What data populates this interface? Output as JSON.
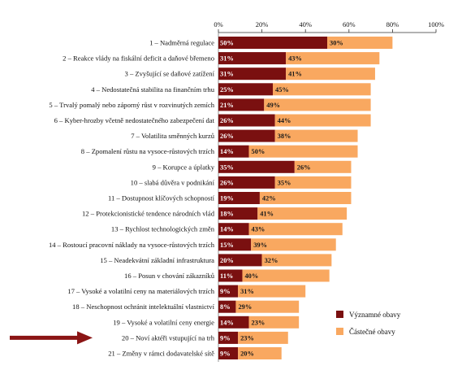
{
  "chart_data": {
    "type": "bar",
    "orientation": "horizontal",
    "stacked": true,
    "categories": [
      "1 – Nadměrná regulace",
      "2 – Reakce vlády na fiskální deficit a daňové břemeno",
      "3 – Zvyšující se daňové zatížení",
      "4 – Nedostatečná stabilita na finančním trhu",
      "5 – Trvalý pomalý nebo záporný růst v rozvinutých zemích",
      "6 – Kyber-hrozby včetně nedostatečného zabezpečení dat",
      "7 – Volatilita směnných kurzů",
      "8 – Zpomalení růstu na vysoce-růstových trzích",
      "9 – Korupce a úplatky",
      "10 – slabá důvěra v podnikání",
      "11 – Dostupnost klíčových schopností",
      "12 – Protekcionistické tendence národních vlád",
      "13 – Rychlost technologických změn",
      "14 – Rostoucí pracovní náklady na vysoce-růstových trzích",
      "15 – Neadekvátní základní infrastruktura",
      "16 – Posun v chování zákazníků",
      "17 – Vysoké a volatilní ceny na materiálových trzích",
      "18 – Neschopnost ochránit intelektuální vlastnictví",
      "19 – Vysoké a volatilní ceny energie",
      "20 – Noví aktéři vstupující na trh",
      "21 – Změny v rámci dodavatelské sítě"
    ],
    "series": [
      {
        "name": "Významné obavy",
        "color": "#7a1010",
        "values": [
          50,
          31,
          31,
          25,
          21,
          26,
          26,
          14,
          35,
          26,
          19,
          18,
          14,
          15,
          20,
          11,
          9,
          8,
          14,
          9,
          9
        ]
      },
      {
        "name": "Částečné obavy",
        "color": "#f9a860",
        "values": [
          30,
          43,
          41,
          45,
          49,
          44,
          38,
          50,
          26,
          35,
          42,
          41,
          43,
          39,
          32,
          40,
          31,
          29,
          23,
          23,
          20
        ]
      }
    ],
    "value_labels": [
      [
        "50%",
        "30%"
      ],
      [
        "31%",
        "43%"
      ],
      [
        "31%",
        "41%"
      ],
      [
        "25%",
        "45%"
      ],
      [
        "21%",
        "49%"
      ],
      [
        "26%",
        "44%"
      ],
      [
        "26%",
        "38%"
      ],
      [
        "14%",
        "50%"
      ],
      [
        "35%",
        "26%"
      ],
      [
        "26%",
        "35%"
      ],
      [
        "19%",
        "42%"
      ],
      [
        "18%",
        "41%"
      ],
      [
        "14%",
        "43%"
      ],
      [
        "15%",
        "39%"
      ],
      [
        "20%",
        "32%"
      ],
      [
        "11%",
        "40%"
      ],
      [
        "9%",
        "31%"
      ],
      [
        "8%",
        "29%"
      ],
      [
        "14%",
        "23%"
      ],
      [
        "9%",
        "23%"
      ],
      [
        "9%",
        "20%"
      ]
    ],
    "xlim": [
      0,
      100
    ],
    "xticks": [
      "0%",
      "20%",
      "40%",
      "60%",
      "80%",
      "100%"
    ],
    "xaxis_position": "top",
    "grid": false,
    "legend_position": "bottom-right",
    "highlighted_category_index": 19,
    "highlight_marker": "arrow",
    "highlight_color": "#8b1515"
  }
}
